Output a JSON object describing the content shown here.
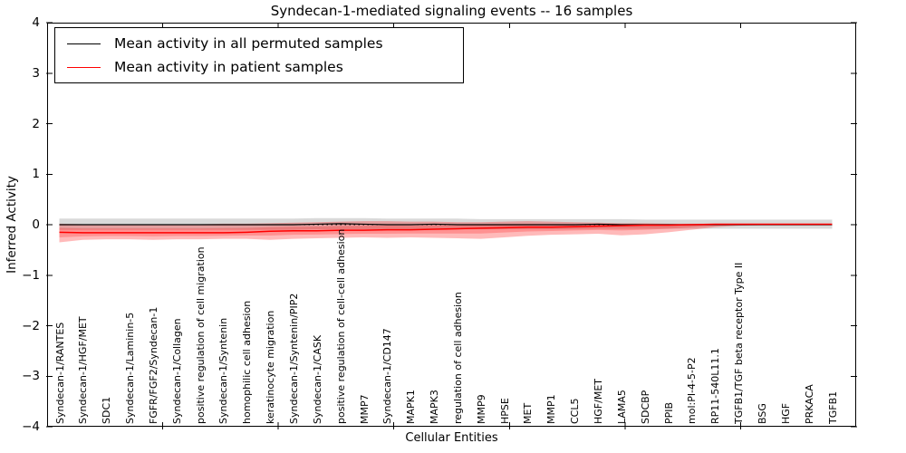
{
  "chart_data": {
    "type": "line",
    "title": "Syndecan-1-mediated signaling events -- 16 samples",
    "xlabel": "Cellular Entities",
    "ylabel": "Inferred Activity",
    "ylim": [
      -4,
      4
    ],
    "ytick_labels": [
      "4",
      "3",
      "2",
      "1",
      "0",
      "−1",
      "−2",
      "−3",
      "−4"
    ],
    "ytick_values": [
      4,
      3,
      2,
      1,
      0,
      -1,
      -2,
      -3,
      -4
    ],
    "xticks_unlabeled_values": [
      5,
      10,
      15,
      20,
      25,
      30
    ],
    "grid": false,
    "legend_position": "upper left",
    "zero_line": {
      "style": "dashed",
      "color": "#000000",
      "y": 0
    },
    "categories": [
      "Syndecan-1/RANTES",
      "Syndecan-1/HGF/MET",
      "SDC1",
      "Syndecan-1/Laminin-5",
      "FGFR/FGF2/Syndecan-1",
      "Syndecan-1/Collagen",
      "positive regulation of cell migration",
      "Syndecan-1/Syntenin",
      "homophilic cell adhesion",
      "keratinocyte migration",
      "Syndecan-1/Syntenin/PIP2",
      "Syndecan-1/CASK",
      "positive regulation of cell-cell adhesion",
      "MMP7",
      "Syndecan-1/CD147",
      "MAPK1",
      "MAPK3",
      "regulation of cell adhesion",
      "MMP9",
      "HPSE",
      "MET",
      "MMP1",
      "CCL5",
      "HGF/MET",
      "LAMA5",
      "SDCBP",
      "PPIB",
      "mol:PI-4-5-P2",
      "RP11-540L11.1",
      "TGFB1/TGF beta receptor Type II",
      "BSG",
      "HGF",
      "PRKACA",
      "TGFB1"
    ],
    "series": [
      {
        "name": "Mean activity in all permuted samples",
        "color": "#000000",
        "style": "solid",
        "band_color": "#d9d9d9",
        "values": [
          0,
          0,
          0,
          0,
          0,
          0,
          0,
          0,
          0,
          0,
          0,
          0.01,
          0.02,
          0.01,
          0,
          0,
          0.01,
          0,
          0,
          0,
          0,
          0,
          0,
          0.01,
          0,
          0,
          0,
          0,
          0,
          0,
          0,
          0,
          0,
          0
        ],
        "band_upper": [
          0.12,
          0.12,
          0.12,
          0.12,
          0.12,
          0.12,
          0.12,
          0.12,
          0.12,
          0.12,
          0.12,
          0.13,
          0.13,
          0.13,
          0.12,
          0.12,
          0.12,
          0.12,
          0.11,
          0.11,
          0.11,
          0.11,
          0.11,
          0.11,
          0.11,
          0.1,
          0.1,
          0.1,
          0.1,
          0.1,
          0.1,
          0.1,
          0.1,
          0.1
        ],
        "band_lower": [
          -0.1,
          -0.1,
          -0.1,
          -0.1,
          -0.1,
          -0.1,
          -0.1,
          -0.1,
          -0.1,
          -0.1,
          -0.1,
          -0.09,
          -0.09,
          -0.09,
          -0.09,
          -0.09,
          -0.09,
          -0.09,
          -0.09,
          -0.09,
          -0.09,
          -0.09,
          -0.09,
          -0.08,
          -0.08,
          -0.08,
          -0.08,
          -0.08,
          -0.08,
          -0.08,
          -0.08,
          -0.08,
          -0.08,
          -0.08
        ]
      },
      {
        "name": "Mean activity in patient samples",
        "color": "#ff0000",
        "style": "solid",
        "band_color": "#f7b6b6",
        "values": [
          -0.15,
          -0.16,
          -0.16,
          -0.16,
          -0.16,
          -0.16,
          -0.16,
          -0.16,
          -0.15,
          -0.13,
          -0.12,
          -0.12,
          -0.11,
          -0.11,
          -0.1,
          -0.1,
          -0.09,
          -0.08,
          -0.07,
          -0.06,
          -0.05,
          -0.05,
          -0.04,
          -0.03,
          -0.02,
          -0.01,
          -0.01,
          0.0,
          0.01,
          0.01,
          0.01,
          0.01,
          0.01,
          0.01
        ],
        "band_upper": [
          0.02,
          0.01,
          0.01,
          0.01,
          0.01,
          0.01,
          0.01,
          0.02,
          0.02,
          0.03,
          0.04,
          0.05,
          0.06,
          0.07,
          0.07,
          0.06,
          0.06,
          0.05,
          0.05,
          0.06,
          0.07,
          0.06,
          0.05,
          0.04,
          0.03,
          0.03,
          0.02,
          0.02,
          0.02,
          0.02,
          0.02,
          0.02,
          0.02,
          0.02
        ],
        "band_lower": [
          -0.35,
          -0.3,
          -0.29,
          -0.29,
          -0.3,
          -0.29,
          -0.29,
          -0.28,
          -0.28,
          -0.3,
          -0.28,
          -0.27,
          -0.26,
          -0.25,
          -0.26,
          -0.25,
          -0.26,
          -0.27,
          -0.28,
          -0.25,
          -0.22,
          -0.2,
          -0.19,
          -0.18,
          -0.21,
          -0.19,
          -0.15,
          -0.1,
          -0.05,
          -0.02,
          -0.01,
          -0.01,
          -0.01,
          -0.01
        ]
      }
    ]
  },
  "legend": {
    "items": [
      {
        "label": "Mean activity in all permuted samples",
        "color": "#000000"
      },
      {
        "label": "Mean activity in patient samples",
        "color": "#ff0000"
      }
    ]
  },
  "colors": {
    "background": "#ffffff",
    "axis": "#000000",
    "permuted_line": "#000000",
    "patient_line": "#ff0000",
    "permuted_band": "#d9d9d9",
    "patient_band": "#f7b6b6"
  }
}
